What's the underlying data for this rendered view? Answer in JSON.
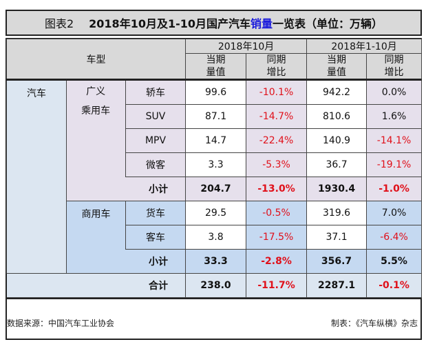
{
  "title": {
    "label": "图表2",
    "text_before": "2018年10月及1-10月国产汽车",
    "highlight": "销量",
    "text_after": "一览表（单位：万辆）",
    "highlight_color": "#1a1adc"
  },
  "header": {
    "model": "车型",
    "period1": "2018年10月",
    "period2": "2018年1-10月",
    "value": "当期量值",
    "value_l1": "当期",
    "value_l2": "量值",
    "growth_l1": "同期",
    "growth_l2": "增比"
  },
  "groups": {
    "all": "汽车",
    "passenger": "广义乘用车",
    "passenger_l1": "广义",
    "passenger_l2": "乘用车",
    "commercial": "商用车"
  },
  "rows": [
    {
      "type": "轿车",
      "m_val": "99.6",
      "m_grow": "-10.1%",
      "y_val": "942.2",
      "y_grow": "0.0%"
    },
    {
      "type": "SUV",
      "m_val": "87.1",
      "m_grow": "-14.7%",
      "y_val": "810.6",
      "y_grow": "1.6%"
    },
    {
      "type": "MPV",
      "m_val": "14.7",
      "m_grow": "-22.4%",
      "y_val": "140.9",
      "y_grow": "-14.1%"
    },
    {
      "type": "微客",
      "m_val": "3.3",
      "m_grow": "-5.3%",
      "y_val": "36.7",
      "y_grow": "-19.1%"
    },
    {
      "type": "小计",
      "m_val": "204.7",
      "m_grow": "-13.0%",
      "y_val": "1930.4",
      "y_grow": "-1.0%"
    },
    {
      "type": "货车",
      "m_val": "29.5",
      "m_grow": "-0.5%",
      "y_val": "319.6",
      "y_grow": "7.0%"
    },
    {
      "type": "客车",
      "m_val": "3.8",
      "m_grow": "-17.5%",
      "y_val": "37.1",
      "y_grow": "-6.4%"
    },
    {
      "type": "小计",
      "m_val": "33.3",
      "m_grow": "-2.8%",
      "y_val": "356.7",
      "y_grow": "5.5%"
    },
    {
      "type": "合计",
      "m_val": "238.0",
      "m_grow": "-11.7%",
      "y_val": "2287.1",
      "y_grow": "-0.1%"
    }
  ],
  "footer": {
    "source": "数据来源：中国汽车工业协会",
    "maker": "制表：《汽车纵横》杂志"
  },
  "colors": {
    "header": "#d9d9d9",
    "passenger": "#e6e0ec",
    "commercial": "#c5d9f1",
    "light_blue": "#dce6f1",
    "negative": "#e0101a"
  }
}
